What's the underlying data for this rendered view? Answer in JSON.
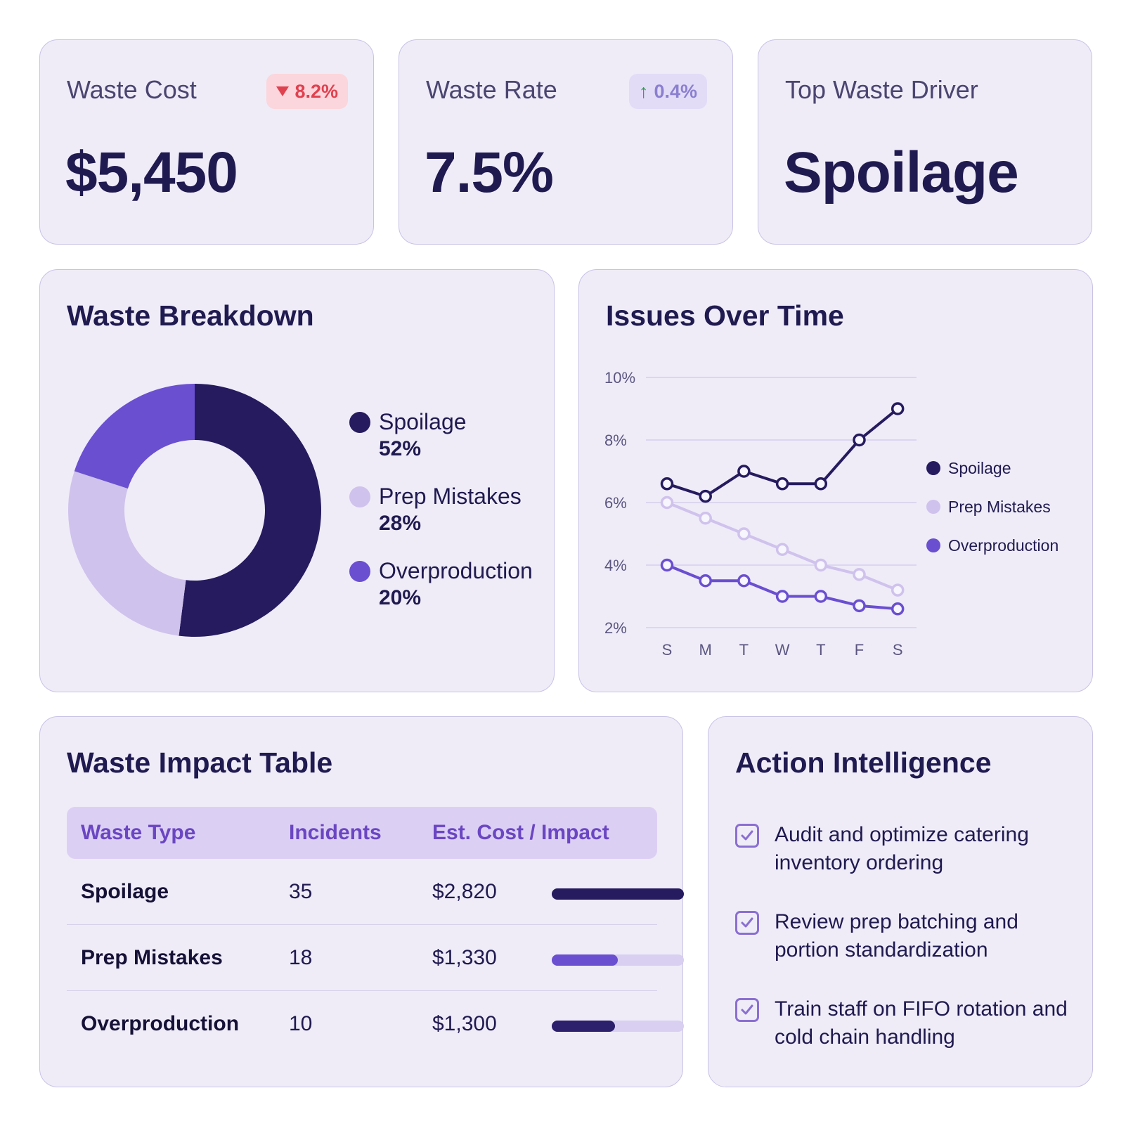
{
  "kpis": [
    {
      "label": "Waste Cost",
      "value": "$5,450",
      "badge": {
        "text": "8.2%",
        "direction": "down",
        "color": "#e0414f"
      }
    },
    {
      "label": "Waste Rate",
      "value": "7.5%",
      "badge": {
        "text": "0.4%",
        "direction": "up",
        "color": "#8b7fd0"
      }
    },
    {
      "label": "Top Waste Driver",
      "value": "Spoilage"
    }
  ],
  "breakdown": {
    "title": "Waste Breakdown",
    "legend": [
      {
        "name": "Spoilage",
        "pct": "52%",
        "color": "#261b5e"
      },
      {
        "name": "Prep Mistakes",
        "pct": "28%",
        "color": "#cfc2ec"
      },
      {
        "name": "Overproduction",
        "pct": "20%",
        "color": "#6a4fd0"
      }
    ]
  },
  "issues": {
    "title": "Issues Over Time"
  },
  "chart_data": [
    {
      "type": "pie",
      "variant": "donut",
      "labels": [
        "Spoilage",
        "Prep Mistakes",
        "Overproduction"
      ],
      "values": [
        52,
        28,
        20
      ],
      "colors": [
        "#261b5e",
        "#cfc2ec",
        "#6a4fd0"
      ]
    },
    {
      "type": "line",
      "categories": [
        "S",
        "M",
        "T",
        "W",
        "T",
        "F",
        "S"
      ],
      "y_ticks": [
        "10%",
        "8%",
        "6%",
        "4%",
        "2%"
      ],
      "ylim": [
        2,
        10
      ],
      "grid": true,
      "legend_position": "right",
      "series": [
        {
          "name": "Spoilage",
          "color": "#261b5e",
          "values": [
            6.6,
            6.2,
            7.0,
            6.6,
            6.6,
            8.0,
            9.0
          ]
        },
        {
          "name": "Prep Mistakes",
          "color": "#cfc2ec",
          "values": [
            6.0,
            5.5,
            5.0,
            4.5,
            4.0,
            3.7,
            3.2
          ]
        },
        {
          "name": "Overproduction",
          "color": "#6a4fd0",
          "values": [
            4.0,
            3.5,
            3.5,
            3.0,
            3.0,
            2.7,
            2.6
          ]
        }
      ]
    }
  ],
  "impact": {
    "title": "Waste Impact Table",
    "headers": [
      "Waste Type",
      "Incidents",
      "Est. Cost / Impact"
    ],
    "rows": [
      {
        "type": "Spoilage",
        "incidents": "35",
        "cost": "$2,820",
        "share": 1.0,
        "color": "#261b5e"
      },
      {
        "type": "Prep Mistakes",
        "incidents": "18",
        "cost": "$1,330",
        "share": 0.5,
        "color": "#6a4fd0"
      },
      {
        "type": "Overproduction",
        "incidents": "10",
        "cost": "$1,300",
        "share": 0.48,
        "color": "#2c1f6b"
      }
    ]
  },
  "actions": {
    "title": "Action Intelligence",
    "items": [
      "Audit and optimize catering inventory ordering",
      "Review prep batching and portion standardization",
      "Train staff on FIFO rotation and cold chain handling"
    ]
  }
}
